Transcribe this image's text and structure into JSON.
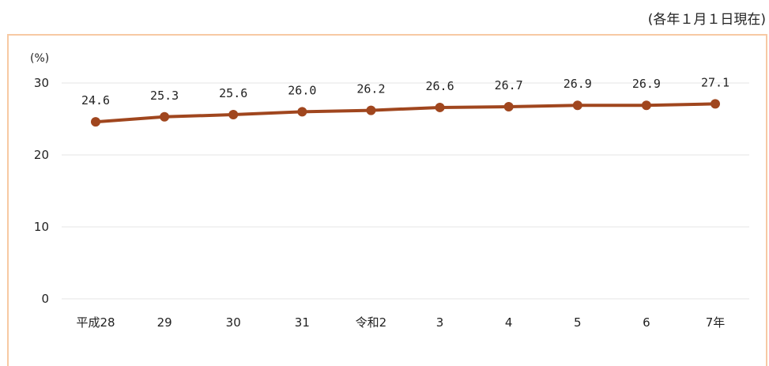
{
  "note": "(各年１月１日現在)",
  "chart_data": {
    "type": "line",
    "title": "",
    "xlabel": "",
    "ylabel": "",
    "yunit": "(%)",
    "categories": [
      "平成28",
      "29",
      "30",
      "31",
      "令和2",
      "3",
      "4",
      "5",
      "6",
      "7年"
    ],
    "series": [
      {
        "values": [
          24.6,
          25.3,
          25.6,
          26.0,
          26.2,
          26.6,
          26.7,
          26.9,
          26.9,
          27.1
        ],
        "labels": [
          "24.6",
          "25.3",
          "25.6",
          "26.0",
          "26.2",
          "26.6",
          "26.7",
          "26.9",
          "26.9",
          "27.1"
        ]
      }
    ],
    "yticks": [
      0,
      10,
      20,
      30
    ],
    "ylim": [
      0,
      30
    ],
    "grid": true,
    "line_color": "#a0461e"
  }
}
